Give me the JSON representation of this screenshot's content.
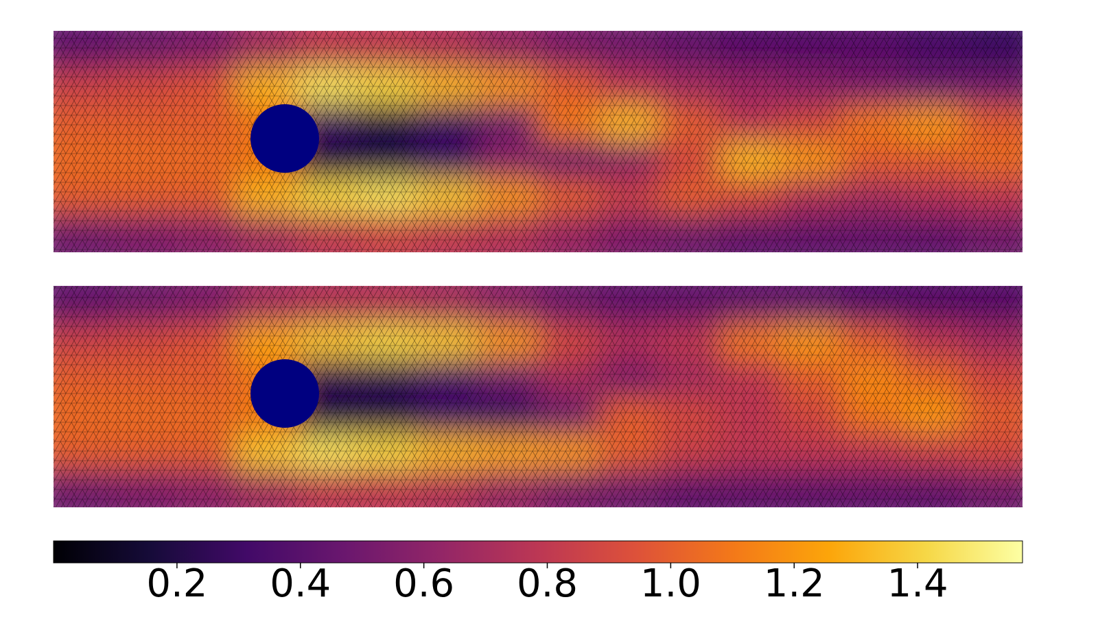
{
  "chart_data": {
    "type": "heatmap",
    "colormap": "inferno",
    "panels": [
      {
        "values": [
          [
            0.45,
            0.5,
            0.55,
            0.7,
            0.8,
            0.8,
            0.75,
            0.65,
            0.55,
            0.5,
            0.45,
            0.4,
            0.4,
            0.4,
            0.35,
            0.3
          ],
          [
            0.85,
            0.9,
            0.95,
            1.3,
            1.45,
            1.4,
            1.3,
            1.2,
            1.0,
            0.8,
            0.7,
            0.65,
            0.6,
            0.55,
            0.5,
            0.5
          ],
          [
            1.0,
            1.0,
            1.0,
            1.1,
            0.3,
            0.2,
            0.3,
            0.5,
            1.1,
            1.3,
            1.0,
            0.8,
            0.9,
            1.1,
            1.2,
            1.0
          ],
          [
            1.05,
            1.05,
            1.05,
            1.1,
            0.2,
            0.2,
            0.3,
            0.6,
            0.5,
            0.6,
            0.9,
            1.3,
            1.2,
            1.0,
            1.0,
            1.05
          ],
          [
            1.0,
            1.0,
            1.0,
            1.3,
            1.4,
            1.45,
            1.35,
            1.2,
            1.0,
            0.85,
            1.0,
            0.9,
            0.75,
            0.7,
            0.75,
            0.8
          ],
          [
            0.5,
            0.55,
            0.6,
            0.7,
            0.8,
            0.85,
            0.8,
            0.75,
            0.65,
            0.55,
            0.5,
            0.45,
            0.45,
            0.45,
            0.45,
            0.5
          ]
        ]
      },
      {
        "values": [
          [
            0.45,
            0.5,
            0.55,
            0.7,
            0.75,
            0.75,
            0.7,
            0.6,
            0.5,
            0.45,
            0.45,
            0.45,
            0.45,
            0.4,
            0.4,
            0.4
          ],
          [
            0.85,
            0.9,
            0.95,
            1.25,
            1.35,
            1.4,
            1.35,
            1.2,
            0.9,
            0.75,
            0.8,
            1.1,
            1.2,
            1.0,
            0.8,
            0.7
          ],
          [
            1.0,
            1.0,
            1.0,
            1.1,
            0.25,
            0.25,
            0.35,
            0.5,
            0.7,
            0.55,
            0.7,
            0.8,
            1.0,
            1.15,
            1.05,
            0.9
          ],
          [
            1.05,
            1.05,
            1.05,
            1.1,
            0.2,
            0.2,
            0.3,
            0.3,
            0.5,
            1.0,
            0.9,
            0.8,
            0.9,
            1.1,
            1.2,
            1.0
          ],
          [
            1.0,
            1.0,
            1.0,
            1.35,
            1.45,
            1.4,
            1.3,
            1.25,
            1.2,
            1.0,
            0.85,
            0.8,
            0.8,
            0.8,
            0.85,
            0.9
          ],
          [
            0.5,
            0.55,
            0.6,
            0.7,
            0.8,
            0.8,
            0.75,
            0.65,
            0.55,
            0.5,
            0.45,
            0.45,
            0.45,
            0.45,
            0.45,
            0.5
          ]
        ]
      }
    ],
    "colorbar": {
      "lim": [
        0,
        1.57
      ],
      "ticks": [
        0.2,
        0.4,
        0.6,
        0.8,
        {
          "value": 1,
          "label": "1.0"
        },
        1.2,
        1.4
      ]
    }
  }
}
